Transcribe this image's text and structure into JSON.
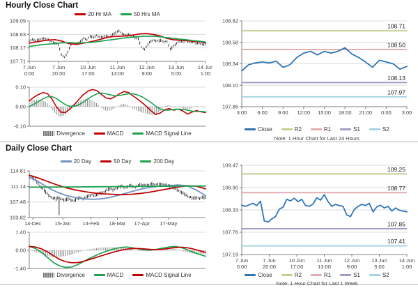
{
  "panels": {
    "hourly": {
      "title": "Hourly Close Chart"
    },
    "daily": {
      "title": "Daily Close Chart"
    },
    "pivot24": {
      "note": "Note: 1 Hour Chart for Last 24 Hours"
    },
    "pivot1w": {
      "note": "Note: 1 Hour Chart for Last 1 Week"
    }
  },
  "colors": {
    "ma_red": "#c00000",
    "ma_green": "#1fa14e",
    "ma_blue": "#7090c0",
    "close_blue": "#2e75b6",
    "r2": "#c3cf8f",
    "r1": "#e2aeb1",
    "s1": "#a49bc4",
    "s2": "#a6d5e2",
    "divergence": "#8c8c8c",
    "candle": "#1a1a1a"
  },
  "chart_data": [
    {
      "id": "hourly_price",
      "type": "candlestick+line",
      "ylim": [
        107.71,
        109.09
      ],
      "yticks": [
        109.09,
        108.63,
        108.17,
        107.71
      ],
      "xticks": [
        "7 Jun|0:00",
        "7 Jun|20:00",
        "10 Jun|17:00",
        "11 Jun|13:00",
        "12 Jun|9:00",
        "13 Jun|5:00",
        "14 Jun|1:00"
      ],
      "legend": [
        {
          "label": "20 Hr MA",
          "color": "#c00000",
          "swatch": "line"
        },
        {
          "label": "50 Hrs MA",
          "color": "#1fa14e",
          "swatch": "line"
        }
      ],
      "series": [
        {
          "name": "Close",
          "type": "candles",
          "color": "#1a1a1a",
          "values": [
            108.42,
            108.45,
            108.4,
            108.46,
            108.5,
            108.47,
            108.44,
            108.4,
            108.33,
            108.28,
            107.95,
            107.85,
            108.02,
            108.28,
            108.34,
            108.3,
            108.38,
            108.5,
            108.46,
            108.56,
            108.52,
            108.6,
            108.55,
            108.52,
            108.58,
            108.55,
            108.62,
            108.68,
            108.76,
            108.66,
            108.58,
            108.62,
            108.6,
            108.52,
            108.48,
            108.2,
            108.12,
            108.28,
            108.4,
            108.44,
            108.4,
            108.42,
            108.38,
            108.4,
            108.12,
            108.22,
            108.34,
            108.4,
            108.38,
            108.42,
            108.36,
            108.38,
            108.32,
            108.34,
            108.28,
            108.31
          ]
        },
        {
          "name": "20 Hr MA",
          "type": "line",
          "color": "#c00000",
          "width": 1.7,
          "values": [
            108.33,
            108.37,
            108.41,
            108.44,
            108.45,
            108.4,
            108.32,
            108.29,
            108.32,
            108.36,
            108.41,
            108.47,
            108.53,
            108.56,
            108.57,
            108.58,
            108.61,
            108.65,
            108.66,
            108.63,
            108.58,
            108.5,
            108.45,
            108.43,
            108.42,
            108.4,
            108.38,
            108.34
          ]
        },
        {
          "name": "50 Hrs MA",
          "type": "line",
          "color": "#1fa14e",
          "width": 1.7,
          "values": [
            108.22,
            108.25,
            108.28,
            108.3,
            108.32,
            108.34,
            108.35,
            108.34,
            108.34,
            108.35,
            108.37,
            108.4,
            108.43,
            108.46,
            108.49,
            108.52,
            108.54,
            108.56,
            108.57,
            108.57,
            108.55,
            108.52,
            108.5,
            108.47,
            108.45,
            108.42,
            108.4,
            108.37
          ]
        }
      ]
    },
    {
      "id": "hourly_macd",
      "type": "line+histogram",
      "ylim": [
        -0.1,
        0.1
      ],
      "yticks": [
        0.1,
        0.0,
        -0.1
      ],
      "xticks": [],
      "legend": [
        {
          "label": "Divergence",
          "color": "#6e6e6e",
          "swatch": "bars"
        },
        {
          "label": "MACD",
          "color": "#c00000",
          "swatch": "line"
        },
        {
          "label": "MACD Signal Line",
          "color": "#1fa14e",
          "swatch": "line"
        }
      ],
      "series": [
        {
          "name": "Divergence",
          "type": "divergence",
          "a": 1,
          "b": 2
        },
        {
          "name": "MACD",
          "type": "line",
          "color": "#c00000",
          "width": 1.6,
          "values": [
            0.03,
            0.048,
            0.062,
            0.072,
            0.068,
            0.04,
            0.0,
            -0.028,
            -0.03,
            -0.012,
            0.012,
            0.038,
            0.062,
            0.08,
            0.088,
            0.082,
            0.062,
            0.045,
            0.04,
            0.052,
            0.066,
            0.078,
            0.072,
            0.055,
            0.038,
            0.02,
            0.0,
            -0.022,
            -0.04,
            -0.032,
            -0.015,
            -0.01,
            -0.018,
            -0.012,
            -0.022,
            -0.038,
            -0.028,
            -0.02,
            -0.026,
            -0.03
          ]
        },
        {
          "name": "MACD Signal Line",
          "type": "line",
          "color": "#1fa14e",
          "width": 1.6,
          "values": [
            0.0,
            0.012,
            0.026,
            0.04,
            0.05,
            0.052,
            0.042,
            0.026,
            0.01,
            0.002,
            0.002,
            0.01,
            0.024,
            0.04,
            0.055,
            0.066,
            0.07,
            0.066,
            0.06,
            0.056,
            0.057,
            0.062,
            0.066,
            0.066,
            0.06,
            0.05,
            0.036,
            0.02,
            0.002,
            -0.012,
            -0.018,
            -0.017,
            -0.014,
            -0.013,
            -0.014,
            -0.018,
            -0.023,
            -0.025,
            -0.024,
            -0.026
          ]
        }
      ]
    },
    {
      "id": "pivot_24h",
      "type": "line",
      "ylim": [
        107.86,
        108.82
      ],
      "yticks": [
        108.82,
        108.58,
        108.34,
        108.1,
        107.86
      ],
      "xticks": [
        "3:00",
        "6:00",
        "9:00",
        "12:00",
        "15:00",
        "18:00",
        "21:00",
        "0:00",
        "3:00"
      ],
      "levels": [
        {
          "name": "R2",
          "value": 108.71,
          "color": "#c3cf8f"
        },
        {
          "name": "R1",
          "value": 108.5,
          "color": "#e2aeb1"
        },
        {
          "name": "S1",
          "value": 108.13,
          "color": "#a49bc4"
        },
        {
          "name": "S2",
          "value": 107.97,
          "color": "#a6d5e2"
        }
      ],
      "legend": [
        {
          "label": "Close",
          "color": "#2e75b6",
          "swatch": "line"
        },
        {
          "label": "R2",
          "color": "#c3cf8f",
          "swatch": "line"
        },
        {
          "label": "R1",
          "color": "#e2aeb1",
          "swatch": "line"
        },
        {
          "label": "S1",
          "color": "#a49bc4",
          "swatch": "line"
        },
        {
          "label": "S2",
          "color": "#a6d5e2",
          "swatch": "line"
        }
      ],
      "series": [
        {
          "name": "Close",
          "type": "line",
          "color": "#2e75b6",
          "width": 1.8,
          "values": [
            108.26,
            108.33,
            108.35,
            108.36,
            108.35,
            108.37,
            108.3,
            108.33,
            108.41,
            108.46,
            108.48,
            108.44,
            108.48,
            108.46,
            108.48,
            108.52,
            108.45,
            108.41,
            108.36,
            108.3,
            108.38,
            108.36,
            108.34,
            108.28,
            108.31
          ]
        }
      ]
    },
    {
      "id": "daily_price",
      "type": "candlestick+line",
      "ylim": [
        103.82,
        114.81
      ],
      "yticks": [
        114.81,
        111.14,
        107.48,
        103.82
      ],
      "xticks": [
        "14-Dec",
        "15-Jan",
        "14-Feb",
        "18-Mar",
        "17-Apr",
        "17-May"
      ],
      "xtick_pos": [
        0.02,
        0.19,
        0.35,
        0.5,
        0.64,
        0.79
      ],
      "legend": [
        {
          "label": "20 Day",
          "color": "#7090c0",
          "swatch": "line"
        },
        {
          "label": "50 Day",
          "color": "#c00000",
          "swatch": "line"
        },
        {
          "label": "200 Day",
          "color": "#1fa14e",
          "swatch": "line"
        }
      ],
      "series": [
        {
          "name": "Close",
          "type": "candles",
          "color": "#1a1a1a",
          "spikes": [
            {
              "i": 10,
              "low": 104.4
            }
          ],
          "values": [
            113.5,
            113.3,
            112.7,
            111.8,
            111.0,
            110.2,
            109.4,
            108.8,
            108.4,
            108.2,
            108.5,
            108.1,
            107.9,
            108.2,
            108.0,
            107.8,
            108.2,
            108.5,
            108.3,
            108.6,
            108.9,
            109.2,
            109.0,
            109.3,
            109.6,
            109.9,
            110.3,
            110.6,
            110.4,
            110.7,
            111.0,
            111.2,
            110.9,
            111.1,
            111.3,
            111.0,
            111.2,
            111.5,
            111.3,
            111.6,
            111.4,
            111.7,
            111.5,
            111.8,
            111.6,
            111.4,
            111.6,
            111.3,
            111.0,
            110.6,
            110.2,
            109.7,
            109.3,
            108.9,
            108.6,
            108.3,
            108.5,
            108.4,
            108.6,
            108.4
          ]
        },
        {
          "name": "20 Day",
          "type": "line",
          "color": "#7090c0",
          "width": 1.8,
          "values": [
            113.3,
            112.2,
            110.9,
            109.8,
            109.0,
            108.5,
            108.2,
            108.1,
            108.3,
            108.7,
            109.3,
            109.9,
            110.5,
            110.9,
            111.2,
            111.3,
            111.5,
            111.3,
            110.3,
            109.0
          ]
        },
        {
          "name": "50 Day",
          "type": "line",
          "color": "#c00000",
          "width": 1.8,
          "values": [
            113.8,
            113.1,
            112.3,
            111.5,
            110.8,
            110.3,
            109.9,
            109.6,
            109.4,
            109.3,
            109.2,
            109.3,
            109.5,
            109.8,
            110.2,
            110.6,
            111.0,
            111.3,
            111.2,
            110.6
          ]
        },
        {
          "name": "200 Day",
          "type": "line",
          "color": "#1fa14e",
          "width": 1.8,
          "values": [
            110.95,
            111.02,
            111.1,
            111.18,
            111.25
          ]
        }
      ]
    },
    {
      "id": "daily_macd",
      "type": "line+histogram",
      "ylim": [
        -1.4,
        1.4
      ],
      "yticks": [
        1.4,
        0.0,
        -1.4
      ],
      "xticks": [],
      "legend": [
        {
          "label": "Divergence",
          "color": "#6e6e6e",
          "swatch": "bars"
        },
        {
          "label": "MACD",
          "color": "#1fa14e",
          "swatch": "line"
        },
        {
          "label": "MACD Signal Line",
          "color": "#c00000",
          "swatch": "line"
        }
      ],
      "series": [
        {
          "name": "Divergence",
          "type": "divergence",
          "a": 1,
          "b": 2
        },
        {
          "name": "MACD",
          "type": "line",
          "color": "#1fa14e",
          "width": 1.7,
          "values": [
            0.3,
            0.15,
            -0.15,
            -0.55,
            -0.95,
            -1.2,
            -1.32,
            -1.28,
            -1.1,
            -0.85,
            -0.6,
            -0.38,
            -0.18,
            -0.02,
            0.12,
            0.22,
            0.26,
            0.2,
            0.1,
            0.04,
            0.02,
            0.08,
            0.18,
            0.26,
            0.3,
            0.22,
            0.05,
            -0.15,
            -0.32,
            -0.45
          ]
        },
        {
          "name": "MACD Signal Line",
          "type": "line",
          "color": "#c00000",
          "width": 1.7,
          "values": [
            0.3,
            0.26,
            0.12,
            -0.12,
            -0.42,
            -0.7,
            -0.88,
            -0.96,
            -0.94,
            -0.84,
            -0.7,
            -0.55,
            -0.4,
            -0.26,
            -0.12,
            0.0,
            0.09,
            0.14,
            0.14,
            0.11,
            0.07,
            0.06,
            0.09,
            0.15,
            0.21,
            0.24,
            0.2,
            0.1,
            -0.02,
            -0.16
          ]
        }
      ]
    },
    {
      "id": "pivot_1w",
      "type": "line",
      "ylim": [
        107.19,
        109.47
      ],
      "yticks": [
        109.47,
        108.9,
        108.33,
        107.76,
        107.19
      ],
      "xticks": [
        "7 Jun|0:00",
        "7 Jun|20:00",
        "10 Jun|17:00",
        "11 Jun|13:00",
        "12 Jun|9:00",
        "13 Jun|5:00",
        "14 Jun|1:00"
      ],
      "levels": [
        {
          "name": "R2",
          "value": 109.25,
          "color": "#c3cf8f"
        },
        {
          "name": "R1",
          "value": 108.77,
          "color": "#e2aeb1"
        },
        {
          "name": "S1",
          "value": 107.85,
          "color": "#a49bc4"
        },
        {
          "name": "S2",
          "value": 107.41,
          "color": "#a6d5e2"
        }
      ],
      "legend": [
        {
          "label": "Close",
          "color": "#2e75b6",
          "swatch": "line"
        },
        {
          "label": "R2",
          "color": "#c3cf8f",
          "swatch": "line"
        },
        {
          "label": "R1",
          "color": "#e2aeb1",
          "swatch": "line"
        },
        {
          "label": "S1",
          "color": "#a49bc4",
          "swatch": "line"
        },
        {
          "label": "S2",
          "color": "#a6d5e2",
          "swatch": "line"
        }
      ],
      "series": [
        {
          "name": "Close",
          "type": "line",
          "color": "#2e75b6",
          "width": 1.8,
          "values": [
            108.45,
            108.42,
            108.46,
            108.5,
            108.44,
            108.55,
            108.05,
            108.02,
            108.1,
            108.16,
            108.35,
            108.4,
            108.6,
            108.56,
            108.63,
            108.54,
            108.6,
            108.44,
            108.42,
            108.48,
            108.64,
            108.58,
            108.72,
            108.54,
            108.42,
            108.47,
            108.44,
            108.42,
            108.2,
            108.16,
            108.34,
            108.42,
            108.47,
            108.44,
            108.5,
            108.28,
            108.41,
            108.45,
            108.38,
            108.42,
            108.3,
            108.38,
            108.32,
            108.3,
            108.28
          ]
        }
      ]
    }
  ]
}
